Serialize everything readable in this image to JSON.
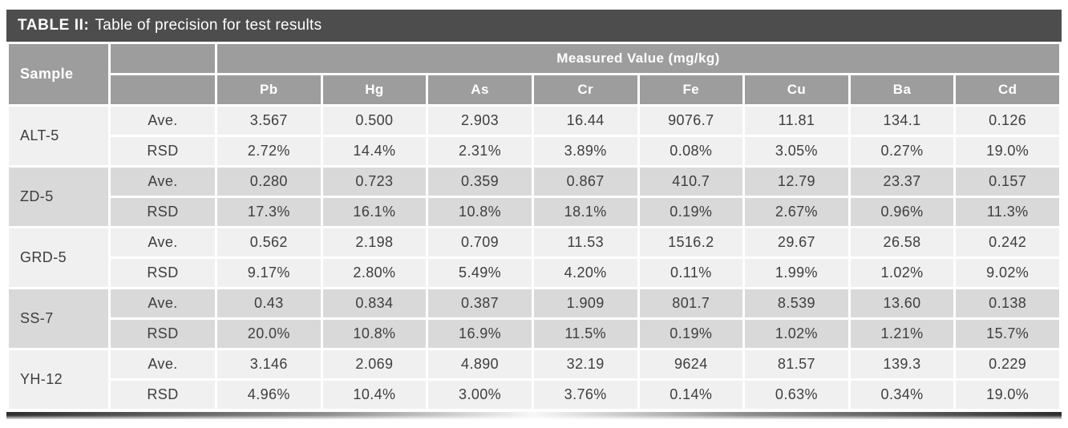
{
  "title": {
    "label": "TABLE II:",
    "text": "Table of precision for test results"
  },
  "header": {
    "sample": "Sample",
    "measured": "Measured Value (mg/kg)",
    "elements": [
      "Pb",
      "Hg",
      "As",
      "Cr",
      "Fe",
      "Cu",
      "Ba",
      "Cd"
    ]
  },
  "row_labels": {
    "ave": "Ave.",
    "rsd": "RSD"
  },
  "rows": [
    {
      "sample": "ALT-5",
      "shade": "light",
      "ave": [
        "3.567",
        "0.500",
        "2.903",
        "16.44",
        "9076.7",
        "11.81",
        "134.1",
        "0.126"
      ],
      "rsd": [
        "2.72%",
        "14.4%",
        "2.31%",
        "3.89%",
        "0.08%",
        "3.05%",
        "0.27%",
        "19.0%"
      ]
    },
    {
      "sample": "ZD-5",
      "shade": "dark",
      "ave": [
        "0.280",
        "0.723",
        "0.359",
        "0.867",
        "410.7",
        "12.79",
        "23.37",
        "0.157"
      ],
      "rsd": [
        "17.3%",
        "16.1%",
        "10.8%",
        "18.1%",
        "0.19%",
        "2.67%",
        "0.96%",
        "11.3%"
      ]
    },
    {
      "sample": "GRD-5",
      "shade": "light",
      "ave": [
        "0.562",
        "2.198",
        "0.709",
        "11.53",
        "1516.2",
        "29.67",
        "26.58",
        "0.242"
      ],
      "rsd": [
        "9.17%",
        "2.80%",
        "5.49%",
        "4.20%",
        "0.11%",
        "1.99%",
        "1.02%",
        "9.02%"
      ]
    },
    {
      "sample": "SS-7",
      "shade": "dark",
      "ave": [
        "0.43",
        "0.834",
        "0.387",
        "1.909",
        "801.7",
        "8.539",
        "13.60",
        "0.138"
      ],
      "rsd": [
        "20.0%",
        "10.8%",
        "16.9%",
        "11.5%",
        "0.19%",
        "1.02%",
        "1.21%",
        "15.7%"
      ]
    },
    {
      "sample": "YH-12",
      "shade": "light",
      "ave": [
        "3.146",
        "2.069",
        "4.890",
        "32.19",
        "9624",
        "81.57",
        "139.3",
        "0.229"
      ],
      "rsd": [
        "4.96%",
        "10.4%",
        "3.00%",
        "3.76%",
        "0.14%",
        "0.63%",
        "0.34%",
        "19.0%"
      ]
    }
  ],
  "colors": {
    "title_bar": "#4d4d4d",
    "header_gray": "#9d9d9d",
    "row_light": "#f0f0f0",
    "row_dark": "#d9d9d9",
    "body_text": "#3e3e3e",
    "cell_border": "#ffffff"
  },
  "chart_data": {
    "type": "table",
    "title": "TABLE II: Table of precision for test results",
    "columns": [
      "Sample",
      "",
      "Pb",
      "Hg",
      "As",
      "Cr",
      "Fe",
      "Cu",
      "Ba",
      "Cd"
    ],
    "column_group": "Measured Value (mg/kg)",
    "rows": [
      [
        "ALT-5",
        "Ave.",
        "3.567",
        "0.500",
        "2.903",
        "16.44",
        "9076.7",
        "11.81",
        "134.1",
        "0.126"
      ],
      [
        "ALT-5",
        "RSD",
        "2.72%",
        "14.4%",
        "2.31%",
        "3.89%",
        "0.08%",
        "3.05%",
        "0.27%",
        "19.0%"
      ],
      [
        "ZD-5",
        "Ave.",
        "0.280",
        "0.723",
        "0.359",
        "0.867",
        "410.7",
        "12.79",
        "23.37",
        "0.157"
      ],
      [
        "ZD-5",
        "RSD",
        "17.3%",
        "16.1%",
        "10.8%",
        "18.1%",
        "0.19%",
        "2.67%",
        "0.96%",
        "11.3%"
      ],
      [
        "GRD-5",
        "Ave.",
        "0.562",
        "2.198",
        "0.709",
        "11.53",
        "1516.2",
        "29.67",
        "26.58",
        "0.242"
      ],
      [
        "GRD-5",
        "RSD",
        "9.17%",
        "2.80%",
        "5.49%",
        "4.20%",
        "0.11%",
        "1.99%",
        "1.02%",
        "9.02%"
      ],
      [
        "SS-7",
        "Ave.",
        "0.43",
        "0.834",
        "0.387",
        "1.909",
        "801.7",
        "8.539",
        "13.60",
        "0.138"
      ],
      [
        "SS-7",
        "RSD",
        "20.0%",
        "10.8%",
        "16.9%",
        "11.5%",
        "0.19%",
        "1.02%",
        "1.21%",
        "15.7%"
      ],
      [
        "YH-12",
        "Ave.",
        "3.146",
        "2.069",
        "4.890",
        "32.19",
        "9624",
        "81.57",
        "139.3",
        "0.229"
      ],
      [
        "YH-12",
        "RSD",
        "4.96%",
        "10.4%",
        "3.00%",
        "3.76%",
        "0.14%",
        "0.63%",
        "0.34%",
        "19.0%"
      ]
    ]
  }
}
